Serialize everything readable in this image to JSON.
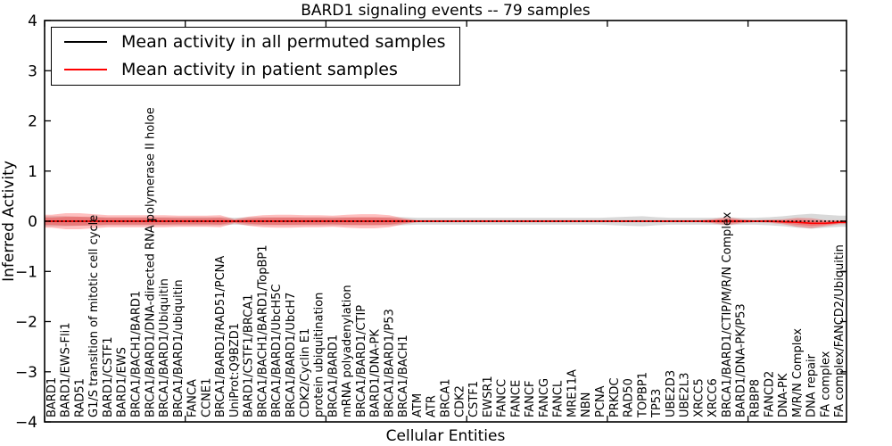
{
  "chart_data": {
    "type": "line",
    "title": "BARD1 signaling events -- 79 samples",
    "xlabel": "Cellular Entities",
    "ylabel": "Inferred Activity",
    "ylim": [
      -4,
      4
    ],
    "yticks": [
      4,
      3,
      2,
      1,
      0,
      -1,
      -2,
      -3,
      -4
    ],
    "xtick_positions": [
      0,
      10,
      20,
      30,
      40,
      50
    ],
    "grid": false,
    "legend_position": "upper left",
    "categories": [
      "BARD1",
      "BARD1/EWS-Fli1",
      "RAD51",
      "G1/S transition of mitotic cell cycle",
      "BARD1/CSTF1",
      "BARD1/EWS",
      "BRCA1/BACH1/BARD1",
      "BRCA1/BARD1/DNA-directed RNA polymerase II holoe",
      "BRCA1/BARD1/Ubiquitin",
      "BRCA1/BARD1/ubiquitin",
      "FANCA",
      "CCNE1",
      "BRCA1/BARD1/RAD51/PCNA",
      "UniProt:Q9BZD1",
      "BARD1/CSTF1/BRCA1",
      "BRCA1/BACH1/BARD1/TopBP1",
      "BRCA1/BARD1/UbcH5C",
      "BRCA1/BARD1/UbcH7",
      "CDK2/Cyclin E1",
      "protein ubiquitination",
      "BRCA1/BARD1",
      "mRNA polyadenylation",
      "BRCA1/BARD1/CTIP",
      "BARD1/DNA-PK",
      "BRCA1/BARD1/P53",
      "BRCA1/BACH1",
      "ATM",
      "ATR",
      "BRCA1",
      "CDK2",
      "CSTF1",
      "EWSR1",
      "FANCC",
      "FANCE",
      "FANCF",
      "FANCG",
      "FANCL",
      "MRE11A",
      "NBN",
      "PCNA",
      "PRKDC",
      "RAD50",
      "TOPBP1",
      "TP53",
      "UBE2D3",
      "UBE2L3",
      "XRCC5",
      "XRCC6",
      "BRCA1/BARD1/CTIP/M/R/N Complex",
      "BARD1/DNA-PK/P53",
      "RBBP8",
      "FANCD2",
      "DNA-PK",
      "M/R/N Complex",
      "DNA repair",
      "FA complex",
      "FA complex/FANCD2/Ubiquitin"
    ],
    "series": [
      {
        "name": "Mean activity in all permuted samples",
        "color": "#000000",
        "style": "dotted",
        "band_color": "rgba(0,0,0,0.15)",
        "values": [
          0,
          0,
          0,
          0,
          0,
          0,
          0,
          0,
          0,
          0,
          0,
          0,
          0,
          0,
          0,
          0,
          0,
          0,
          0,
          0,
          0,
          0,
          0,
          0,
          0,
          0,
          0,
          0,
          0,
          0,
          0,
          0,
          0,
          0,
          0,
          0,
          0,
          0,
          0,
          0,
          0,
          0,
          0,
          0,
          0,
          0,
          0,
          0,
          0,
          0,
          0,
          0,
          0,
          0,
          0,
          0,
          0
        ],
        "band_halfwidth": [
          0.1,
          0.1,
          0.09,
          0.09,
          0.08,
          0.08,
          0.08,
          0.08,
          0.08,
          0.08,
          0.08,
          0.08,
          0.08,
          0.07,
          0.08,
          0.08,
          0.08,
          0.08,
          0.08,
          0.08,
          0.08,
          0.08,
          0.08,
          0.08,
          0.08,
          0.08,
          0.07,
          0.07,
          0.07,
          0.07,
          0.07,
          0.07,
          0.07,
          0.07,
          0.07,
          0.07,
          0.07,
          0.07,
          0.07,
          0.07,
          0.08,
          0.09,
          0.1,
          0.08,
          0.07,
          0.07,
          0.07,
          0.07,
          0.08,
          0.07,
          0.07,
          0.08,
          0.1,
          0.13,
          0.15,
          0.13,
          0.11
        ]
      },
      {
        "name": "Mean activity in patient samples",
        "color": "#ff0000",
        "style": "solid",
        "band_color": "rgba(255,0,0,0.25)",
        "values": [
          0,
          0,
          0,
          0,
          0,
          0,
          0,
          0,
          0,
          0,
          0,
          0,
          0,
          0,
          0,
          0,
          0,
          0,
          0,
          0,
          0,
          0,
          0,
          0,
          0,
          0,
          0,
          0,
          0,
          0,
          0,
          0,
          0,
          0,
          0,
          0,
          0,
          0,
          0,
          0,
          0,
          0,
          0,
          0,
          0,
          0,
          0,
          0,
          0,
          0,
          0,
          0,
          -0.01,
          -0.02,
          -0.04,
          -0.04,
          -0.02
        ],
        "band_halfwidth": [
          0.13,
          0.16,
          0.16,
          0.14,
          0.12,
          0.12,
          0.12,
          0.12,
          0.12,
          0.11,
          0.11,
          0.11,
          0.12,
          0.04,
          0.09,
          0.12,
          0.13,
          0.13,
          0.12,
          0.12,
          0.11,
          0.13,
          0.14,
          0.14,
          0.12,
          0.06,
          0.02,
          0.02,
          0.02,
          0.02,
          0.02,
          0.02,
          0.02,
          0.02,
          0.02,
          0.02,
          0.02,
          0.02,
          0.02,
          0.02,
          0.02,
          0.02,
          0.02,
          0.02,
          0.02,
          0.02,
          0.02,
          0.04,
          0.08,
          0.04,
          0.02,
          0.03,
          0.05,
          0.09,
          0.1,
          0.06,
          0.04
        ]
      }
    ]
  }
}
